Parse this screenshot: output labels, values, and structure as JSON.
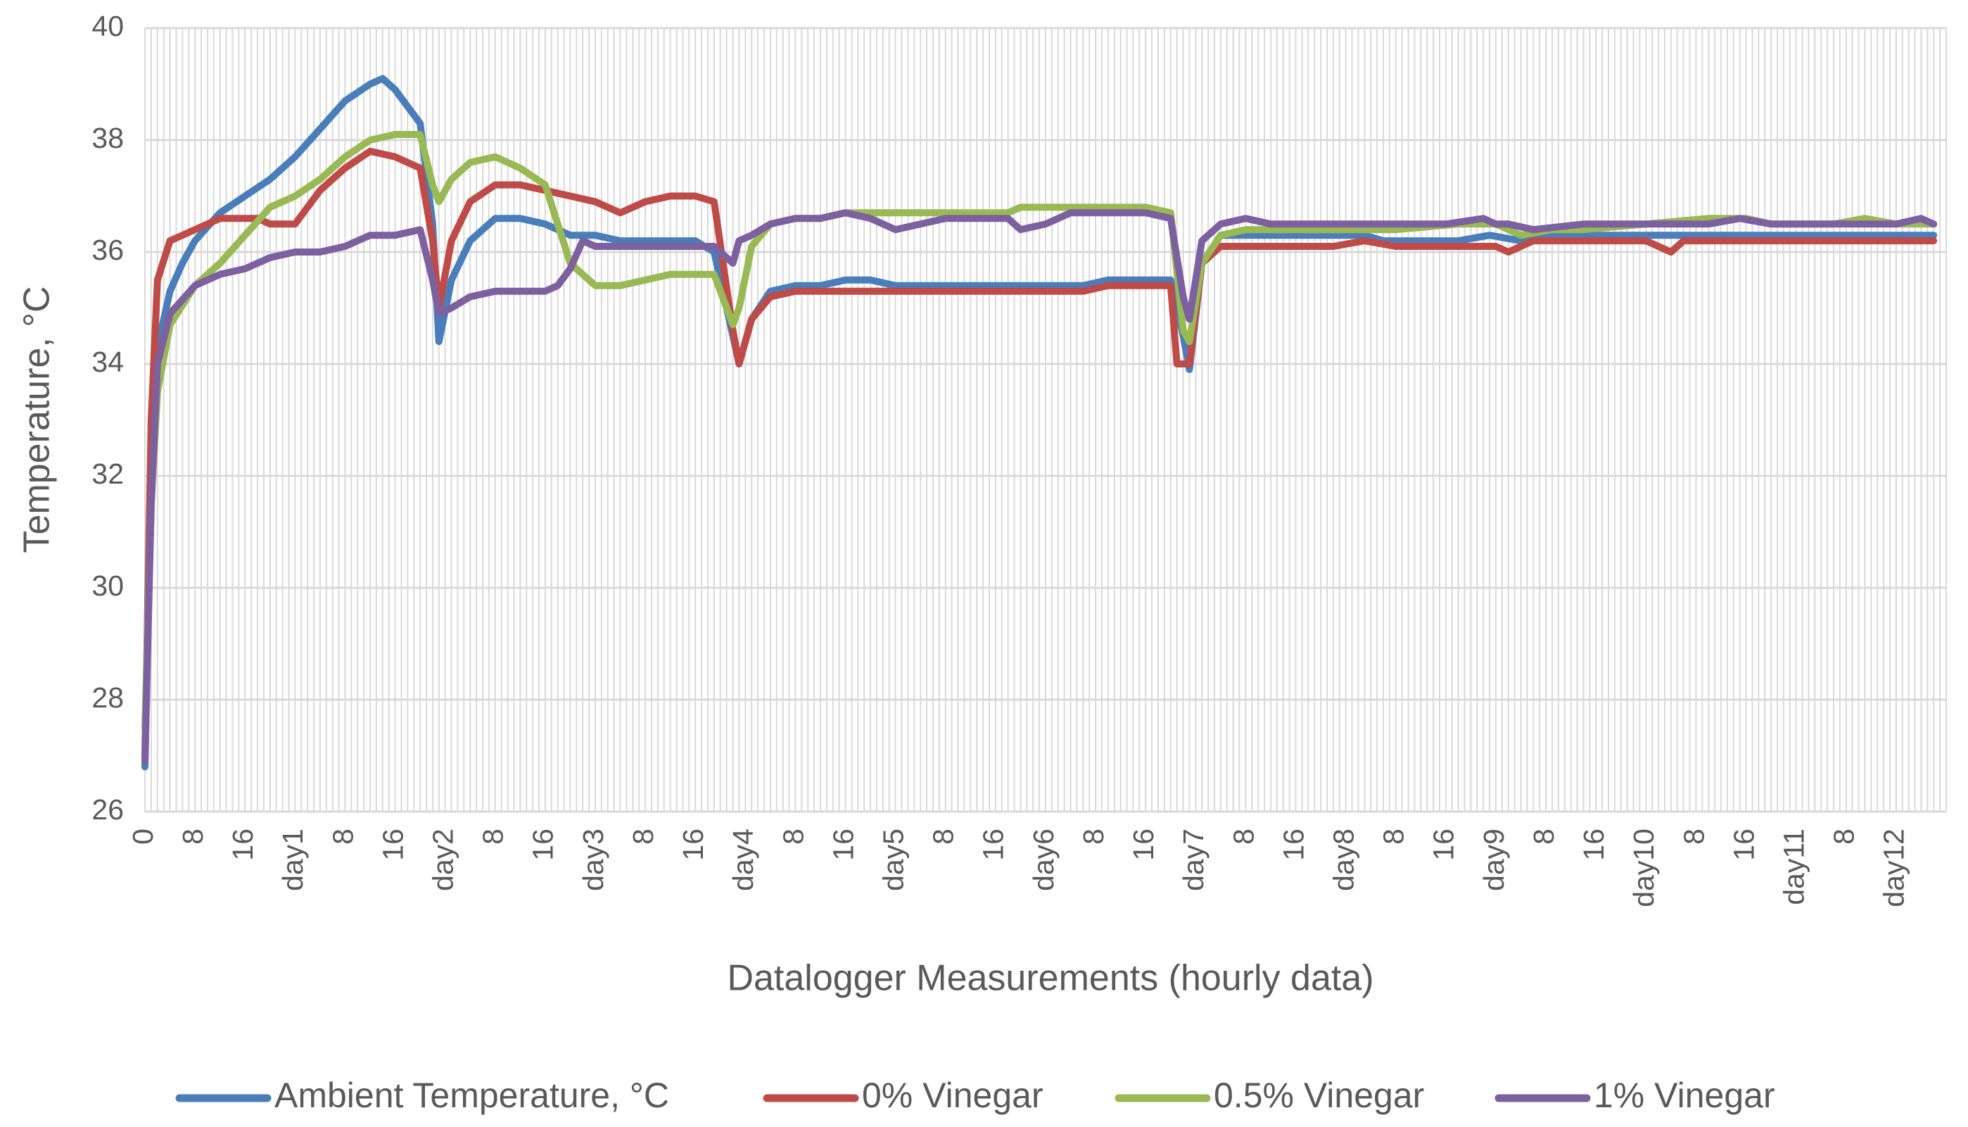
{
  "chart_data": {
    "type": "line",
    "title": "",
    "xlabel": "Datalogger Measurements (hourly data)",
    "ylabel": "Temperature, °C",
    "ylim": [
      26,
      40
    ],
    "yticks": [
      26,
      28,
      30,
      32,
      34,
      36,
      38,
      40
    ],
    "grid": true,
    "legend_position": "bottom",
    "x_tick_labels": [
      "0",
      "8",
      "16",
      "day1",
      "8",
      "16",
      "day2",
      "8",
      "16",
      "day3",
      "8",
      "16",
      "day4",
      "8",
      "16",
      "day5",
      "8",
      "16",
      "day6",
      "8",
      "16",
      "day7",
      "8",
      "16",
      "day8",
      "8",
      "16",
      "day9",
      "8",
      "16",
      "day10",
      "8",
      "16",
      "day11",
      "8",
      "day12"
    ],
    "x_hours_total": 288,
    "series": [
      {
        "name": "Ambient Temperature, °C",
        "color": "#4A7EBB",
        "points": [
          [
            0,
            26.8
          ],
          [
            1,
            32.0
          ],
          [
            2,
            34.3
          ],
          [
            4,
            35.3
          ],
          [
            6,
            35.8
          ],
          [
            8,
            36.2
          ],
          [
            12,
            36.7
          ],
          [
            16,
            37.0
          ],
          [
            20,
            37.3
          ],
          [
            24,
            37.7
          ],
          [
            28,
            38.2
          ],
          [
            32,
            38.7
          ],
          [
            36,
            39.0
          ],
          [
            38,
            39.1
          ],
          [
            40,
            38.9
          ],
          [
            44,
            38.3
          ],
          [
            46,
            36.5
          ],
          [
            47,
            34.4
          ],
          [
            49,
            35.5
          ],
          [
            52,
            36.2
          ],
          [
            56,
            36.6
          ],
          [
            60,
            36.6
          ],
          [
            64,
            36.5
          ],
          [
            68,
            36.3
          ],
          [
            72,
            36.3
          ],
          [
            76,
            36.2
          ],
          [
            80,
            36.2
          ],
          [
            84,
            36.2
          ],
          [
            88,
            36.2
          ],
          [
            91,
            36.0
          ],
          [
            94,
            34.5
          ],
          [
            95,
            34.0
          ],
          [
            97,
            34.8
          ],
          [
            100,
            35.3
          ],
          [
            104,
            35.4
          ],
          [
            108,
            35.4
          ],
          [
            112,
            35.5
          ],
          [
            116,
            35.5
          ],
          [
            120,
            35.4
          ],
          [
            130,
            35.4
          ],
          [
            140,
            35.4
          ],
          [
            150,
            35.4
          ],
          [
            154,
            35.5
          ],
          [
            160,
            35.5
          ],
          [
            164,
            35.5
          ],
          [
            166,
            34.5
          ],
          [
            167,
            33.9
          ],
          [
            169,
            35.8
          ],
          [
            172,
            36.3
          ],
          [
            176,
            36.3
          ],
          [
            180,
            36.3
          ],
          [
            190,
            36.3
          ],
          [
            195,
            36.3
          ],
          [
            198,
            36.2
          ],
          [
            202,
            36.2
          ],
          [
            210,
            36.2
          ],
          [
            215,
            36.3
          ],
          [
            220,
            36.2
          ],
          [
            225,
            36.3
          ],
          [
            230,
            36.3
          ],
          [
            240,
            36.3
          ],
          [
            250,
            36.3
          ],
          [
            260,
            36.3
          ],
          [
            270,
            36.3
          ],
          [
            280,
            36.3
          ],
          [
            286,
            36.3
          ]
        ]
      },
      {
        "name": "0% Vinegar",
        "color": "#BE4B48",
        "points": [
          [
            0,
            27.0
          ],
          [
            1,
            33.0
          ],
          [
            2,
            35.5
          ],
          [
            4,
            36.2
          ],
          [
            8,
            36.4
          ],
          [
            12,
            36.6
          ],
          [
            16,
            36.6
          ],
          [
            18,
            36.6
          ],
          [
            20,
            36.5
          ],
          [
            24,
            36.5
          ],
          [
            28,
            37.1
          ],
          [
            32,
            37.5
          ],
          [
            36,
            37.8
          ],
          [
            40,
            37.7
          ],
          [
            44,
            37.5
          ],
          [
            46,
            36.2
          ],
          [
            47,
            35.0
          ],
          [
            49,
            36.2
          ],
          [
            52,
            36.9
          ],
          [
            56,
            37.2
          ],
          [
            60,
            37.2
          ],
          [
            64,
            37.1
          ],
          [
            68,
            37.0
          ],
          [
            72,
            36.9
          ],
          [
            76,
            36.7
          ],
          [
            80,
            36.9
          ],
          [
            84,
            37.0
          ],
          [
            88,
            37.0
          ],
          [
            91,
            36.9
          ],
          [
            94,
            34.6
          ],
          [
            95,
            34.0
          ],
          [
            97,
            34.8
          ],
          [
            100,
            35.2
          ],
          [
            104,
            35.3
          ],
          [
            108,
            35.3
          ],
          [
            112,
            35.3
          ],
          [
            116,
            35.3
          ],
          [
            120,
            35.3
          ],
          [
            130,
            35.3
          ],
          [
            140,
            35.3
          ],
          [
            150,
            35.3
          ],
          [
            154,
            35.4
          ],
          [
            160,
            35.4
          ],
          [
            164,
            35.4
          ],
          [
            165,
            34.0
          ],
          [
            167,
            34.0
          ],
          [
            169,
            35.8
          ],
          [
            172,
            36.1
          ],
          [
            176,
            36.1
          ],
          [
            180,
            36.1
          ],
          [
            190,
            36.1
          ],
          [
            195,
            36.2
          ],
          [
            200,
            36.1
          ],
          [
            210,
            36.1
          ],
          [
            216,
            36.1
          ],
          [
            218,
            36.0
          ],
          [
            222,
            36.2
          ],
          [
            230,
            36.2
          ],
          [
            240,
            36.2
          ],
          [
            244,
            36.0
          ],
          [
            246,
            36.2
          ],
          [
            260,
            36.2
          ],
          [
            270,
            36.2
          ],
          [
            280,
            36.2
          ],
          [
            286,
            36.2
          ]
        ]
      },
      {
        "name": "0.5% Vinegar",
        "color": "#98B954",
        "points": [
          [
            0,
            27.5
          ],
          [
            1,
            31.5
          ],
          [
            2,
            33.5
          ],
          [
            4,
            34.7
          ],
          [
            8,
            35.4
          ],
          [
            12,
            35.8
          ],
          [
            16,
            36.3
          ],
          [
            20,
            36.8
          ],
          [
            24,
            37.0
          ],
          [
            28,
            37.3
          ],
          [
            32,
            37.7
          ],
          [
            36,
            38.0
          ],
          [
            40,
            38.1
          ],
          [
            44,
            38.1
          ],
          [
            46,
            37.2
          ],
          [
            47,
            36.9
          ],
          [
            49,
            37.3
          ],
          [
            52,
            37.6
          ],
          [
            56,
            37.7
          ],
          [
            60,
            37.5
          ],
          [
            64,
            37.2
          ],
          [
            66,
            36.5
          ],
          [
            68,
            35.8
          ],
          [
            72,
            35.4
          ],
          [
            76,
            35.4
          ],
          [
            80,
            35.5
          ],
          [
            84,
            35.6
          ],
          [
            88,
            35.6
          ],
          [
            91,
            35.6
          ],
          [
            94,
            34.7
          ],
          [
            95,
            35.0
          ],
          [
            97,
            36.1
          ],
          [
            100,
            36.5
          ],
          [
            104,
            36.6
          ],
          [
            108,
            36.6
          ],
          [
            112,
            36.7
          ],
          [
            116,
            36.7
          ],
          [
            120,
            36.7
          ],
          [
            130,
            36.7
          ],
          [
            138,
            36.7
          ],
          [
            140,
            36.8
          ],
          [
            150,
            36.8
          ],
          [
            160,
            36.8
          ],
          [
            164,
            36.7
          ],
          [
            166,
            34.6
          ],
          [
            167,
            34.4
          ],
          [
            169,
            35.8
          ],
          [
            172,
            36.3
          ],
          [
            176,
            36.4
          ],
          [
            180,
            36.4
          ],
          [
            190,
            36.4
          ],
          [
            200,
            36.4
          ],
          [
            210,
            36.5
          ],
          [
            216,
            36.5
          ],
          [
            220,
            36.3
          ],
          [
            225,
            36.4
          ],
          [
            230,
            36.4
          ],
          [
            240,
            36.5
          ],
          [
            250,
            36.6
          ],
          [
            256,
            36.6
          ],
          [
            260,
            36.5
          ],
          [
            270,
            36.5
          ],
          [
            275,
            36.6
          ],
          [
            280,
            36.5
          ],
          [
            286,
            36.5
          ]
        ]
      },
      {
        "name": "1% Vinegar",
        "color": "#7D60A0",
        "points": [
          [
            0,
            26.9
          ],
          [
            1,
            31.5
          ],
          [
            2,
            34.0
          ],
          [
            4,
            34.9
          ],
          [
            8,
            35.4
          ],
          [
            12,
            35.6
          ],
          [
            16,
            35.7
          ],
          [
            20,
            35.9
          ],
          [
            24,
            36.0
          ],
          [
            28,
            36.0
          ],
          [
            32,
            36.1
          ],
          [
            36,
            36.3
          ],
          [
            40,
            36.3
          ],
          [
            44,
            36.4
          ],
          [
            46,
            35.5
          ],
          [
            47,
            34.9
          ],
          [
            49,
            35.0
          ],
          [
            52,
            35.2
          ],
          [
            56,
            35.3
          ],
          [
            60,
            35.3
          ],
          [
            64,
            35.3
          ],
          [
            66,
            35.4
          ],
          [
            68,
            35.7
          ],
          [
            70,
            36.2
          ],
          [
            72,
            36.1
          ],
          [
            76,
            36.1
          ],
          [
            80,
            36.1
          ],
          [
            84,
            36.1
          ],
          [
            88,
            36.1
          ],
          [
            91,
            36.1
          ],
          [
            94,
            35.8
          ],
          [
            95,
            36.2
          ],
          [
            97,
            36.3
          ],
          [
            100,
            36.5
          ],
          [
            104,
            36.6
          ],
          [
            108,
            36.6
          ],
          [
            112,
            36.7
          ],
          [
            116,
            36.6
          ],
          [
            120,
            36.4
          ],
          [
            124,
            36.5
          ],
          [
            128,
            36.6
          ],
          [
            130,
            36.6
          ],
          [
            138,
            36.6
          ],
          [
            140,
            36.4
          ],
          [
            144,
            36.5
          ],
          [
            148,
            36.7
          ],
          [
            156,
            36.7
          ],
          [
            160,
            36.7
          ],
          [
            164,
            36.6
          ],
          [
            166,
            35.2
          ],
          [
            167,
            34.8
          ],
          [
            169,
            36.2
          ],
          [
            172,
            36.5
          ],
          [
            176,
            36.6
          ],
          [
            180,
            36.5
          ],
          [
            190,
            36.5
          ],
          [
            195,
            36.5
          ],
          [
            200,
            36.5
          ],
          [
            208,
            36.5
          ],
          [
            214,
            36.6
          ],
          [
            216,
            36.5
          ],
          [
            218,
            36.5
          ],
          [
            222,
            36.4
          ],
          [
            230,
            36.5
          ],
          [
            240,
            36.5
          ],
          [
            250,
            36.5
          ],
          [
            255,
            36.6
          ],
          [
            260,
            36.5
          ],
          [
            270,
            36.5
          ],
          [
            280,
            36.5
          ],
          [
            284,
            36.6
          ],
          [
            286,
            36.5
          ]
        ]
      }
    ]
  }
}
